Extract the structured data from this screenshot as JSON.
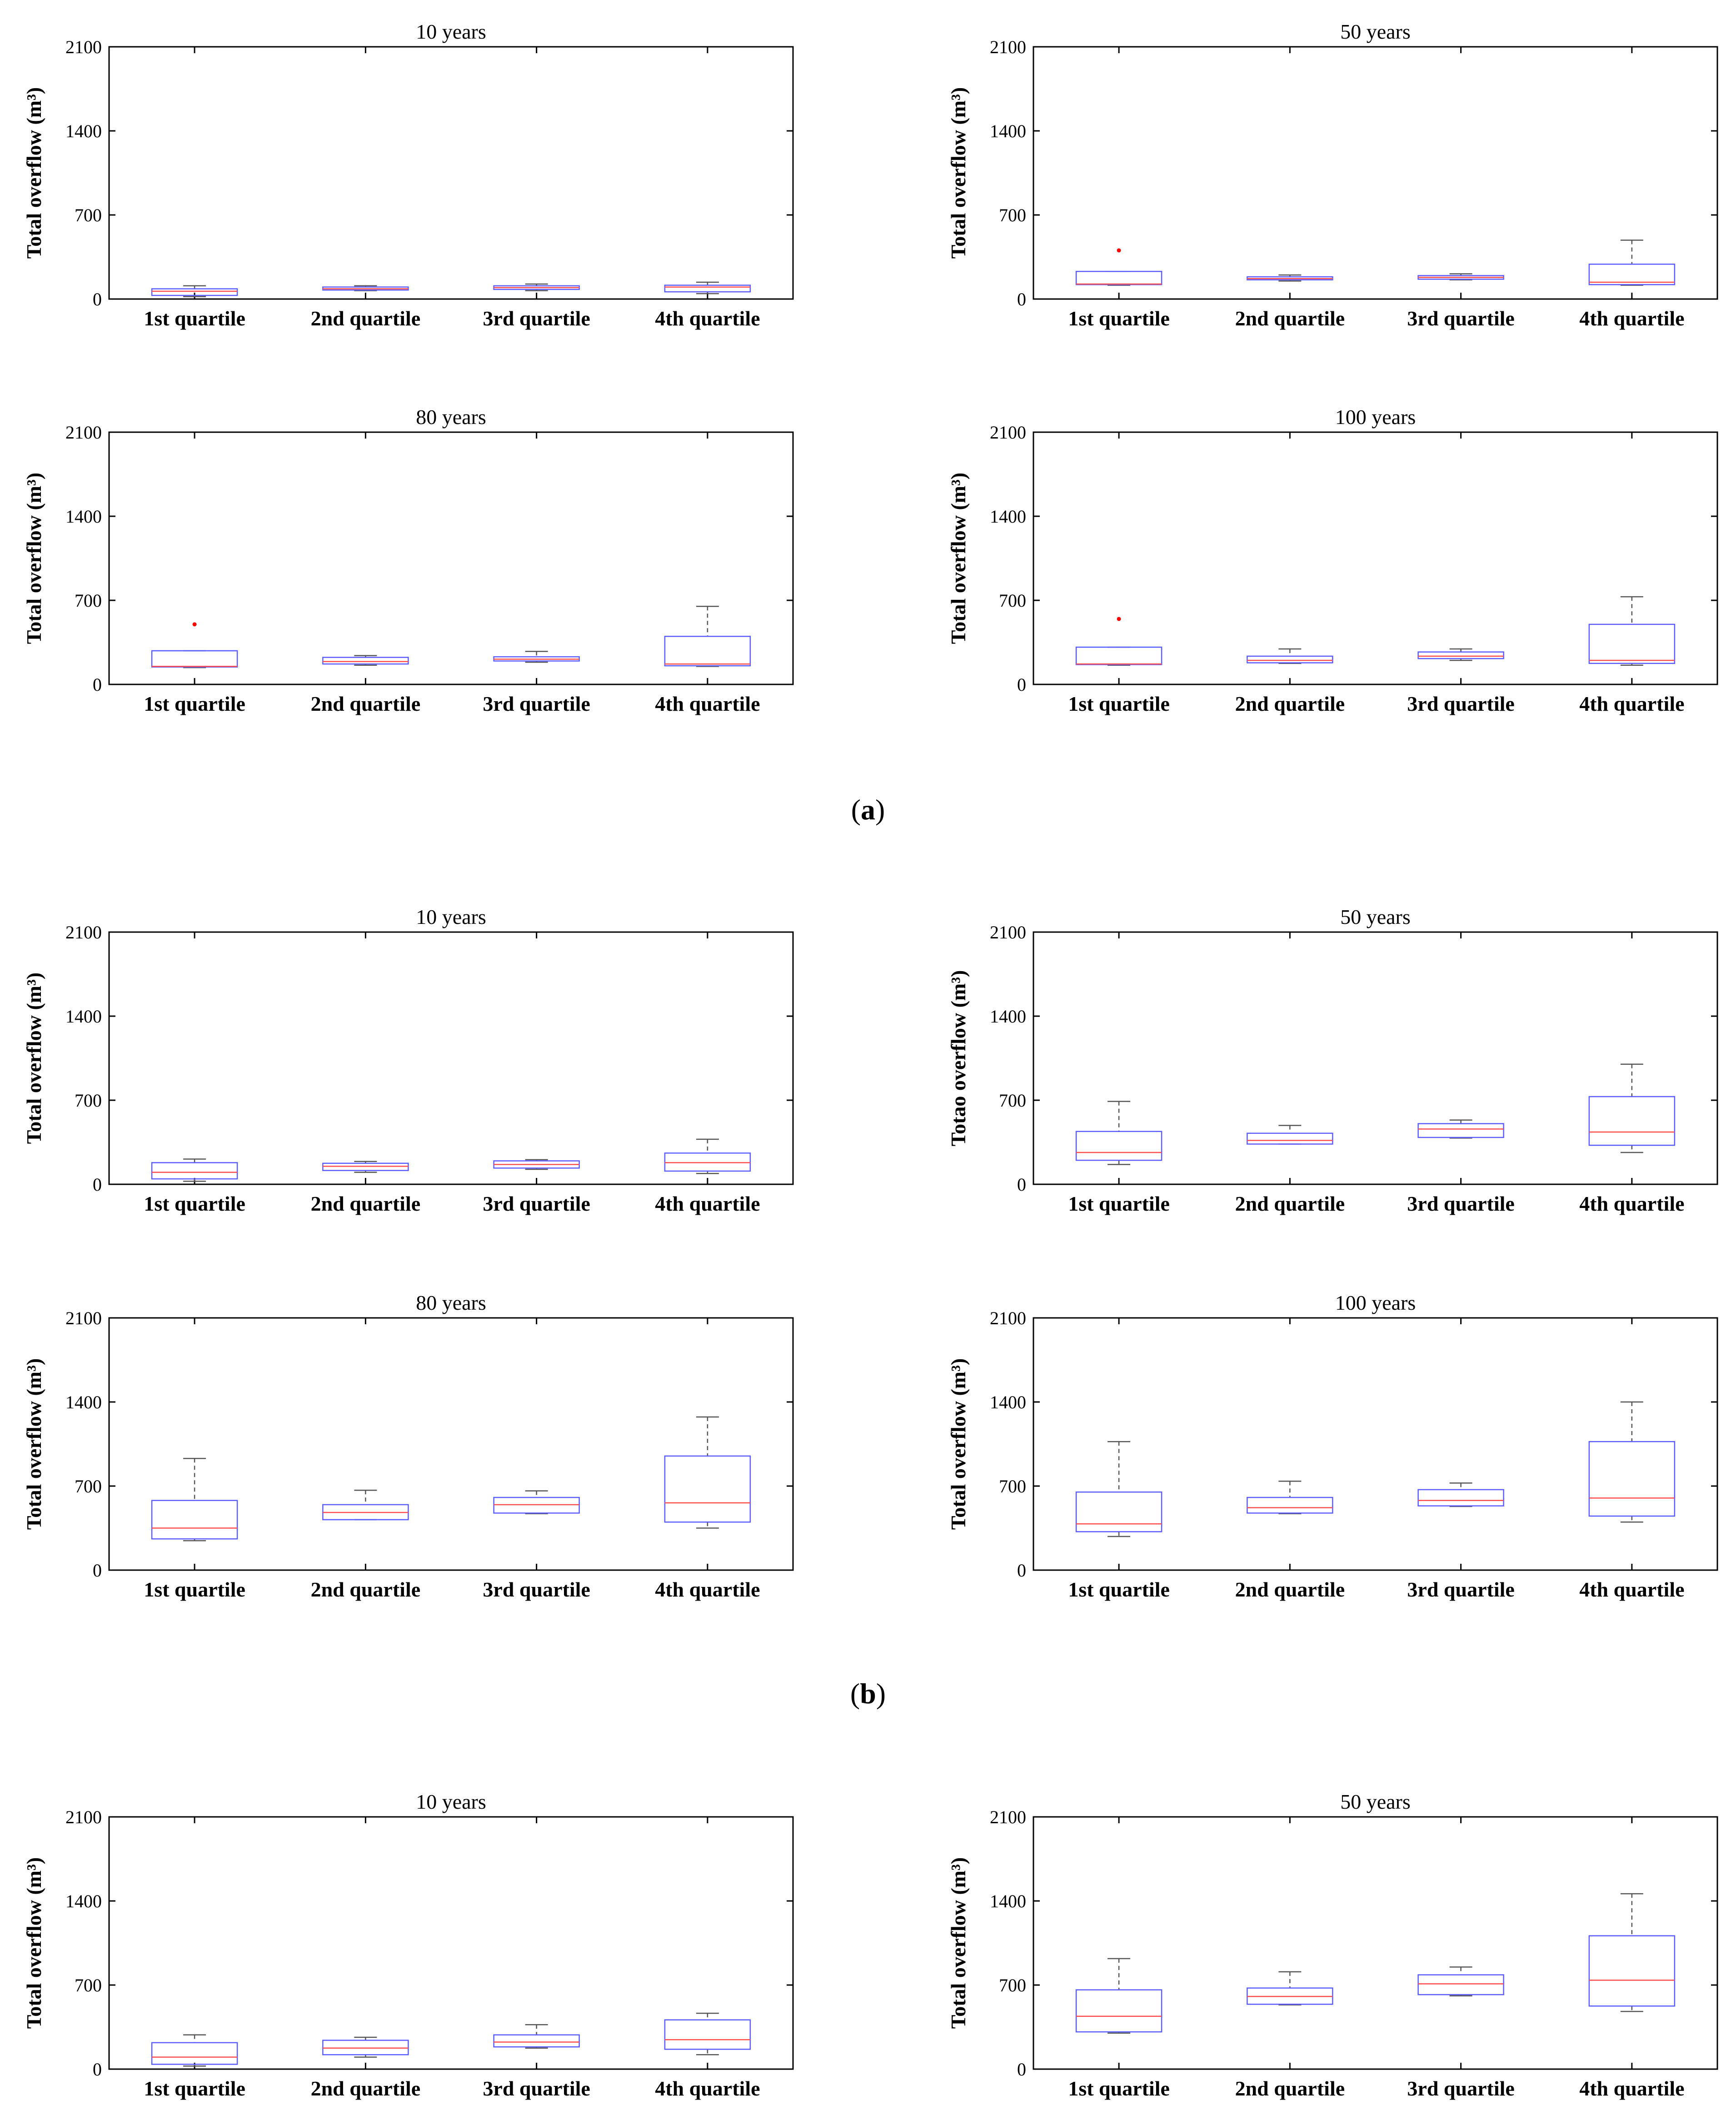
{
  "figure": {
    "panel_labels": [
      "a",
      "b"
    ],
    "colors": {
      "box": "#5a5cff",
      "median": "#ff4b4b",
      "whisker": "#555555",
      "outlier": "#ff0000",
      "axis": "#000000"
    }
  },
  "chart_data": [
    {
      "id": "a-10",
      "type": "boxplot",
      "title": "10 years",
      "ylabel": "Total overflow (m³)",
      "categories": [
        "1st quartile",
        "2nd quartile",
        "3rd quartile",
        "4th quartile"
      ],
      "yticks": [
        0,
        700,
        1400,
        2100
      ],
      "ylim": [
        0,
        2100
      ],
      "boxes": [
        {
          "min": 20,
          "q1": 30,
          "median": 65,
          "q3": 85,
          "max": 110,
          "outliers": []
        },
        {
          "min": 70,
          "q1": 75,
          "median": 85,
          "q3": 100,
          "max": 110,
          "outliers": []
        },
        {
          "min": 70,
          "q1": 80,
          "median": 95,
          "q3": 110,
          "max": 125,
          "outliers": []
        },
        {
          "min": 45,
          "q1": 60,
          "median": 100,
          "q3": 115,
          "max": 140,
          "outliers": []
        }
      ]
    },
    {
      "id": "a-50",
      "type": "boxplot",
      "title": "50 years",
      "ylabel": "Total overflow (m³)",
      "categories": [
        "1st quartile",
        "2nd quartile",
        "3rd quartile",
        "4th quartile"
      ],
      "yticks": [
        0,
        700,
        1400,
        2100
      ],
      "ylim": [
        0,
        2100
      ],
      "boxes": [
        {
          "min": 115,
          "q1": 120,
          "median": 125,
          "q3": 230,
          "max": 230,
          "outliers": [
            405
          ]
        },
        {
          "min": 150,
          "q1": 160,
          "median": 170,
          "q3": 185,
          "max": 200,
          "outliers": []
        },
        {
          "min": 160,
          "q1": 165,
          "median": 180,
          "q3": 195,
          "max": 210,
          "outliers": []
        },
        {
          "min": 115,
          "q1": 120,
          "median": 140,
          "q3": 290,
          "max": 490,
          "outliers": []
        }
      ]
    },
    {
      "id": "a-80",
      "type": "boxplot",
      "title": "80 years",
      "ylabel": "Total overflow (m³)",
      "categories": [
        "1st quartile",
        "2nd quartile",
        "3rd quartile",
        "4th quartile"
      ],
      "yticks": [
        0,
        700,
        1400,
        2100
      ],
      "ylim": [
        0,
        2100
      ],
      "boxes": [
        {
          "min": 140,
          "q1": 145,
          "median": 150,
          "q3": 280,
          "max": 280,
          "outliers": [
            500
          ]
        },
        {
          "min": 160,
          "q1": 170,
          "median": 190,
          "q3": 225,
          "max": 240,
          "outliers": []
        },
        {
          "min": 185,
          "q1": 195,
          "median": 210,
          "q3": 230,
          "max": 275,
          "outliers": []
        },
        {
          "min": 150,
          "q1": 155,
          "median": 170,
          "q3": 400,
          "max": 650,
          "outliers": []
        }
      ]
    },
    {
      "id": "a-100",
      "type": "boxplot",
      "title": "100 years",
      "ylabel": "Total overflow (m³)",
      "categories": [
        "1st quartile",
        "2nd quartile",
        "3rd quartile",
        "4th quartile"
      ],
      "yticks": [
        0,
        700,
        1400,
        2100
      ],
      "ylim": [
        0,
        2100
      ],
      "boxes": [
        {
          "min": 160,
          "q1": 165,
          "median": 170,
          "q3": 310,
          "max": 310,
          "outliers": [
            545
          ]
        },
        {
          "min": 175,
          "q1": 180,
          "median": 200,
          "q3": 235,
          "max": 295,
          "outliers": []
        },
        {
          "min": 200,
          "q1": 215,
          "median": 235,
          "q3": 270,
          "max": 295,
          "outliers": []
        },
        {
          "min": 160,
          "q1": 175,
          "median": 200,
          "q3": 500,
          "max": 730,
          "outliers": []
        }
      ]
    },
    {
      "id": "b-10",
      "type": "boxplot",
      "title": "10 years",
      "ylabel": "Total overflow (m³)",
      "categories": [
        "1st quartile",
        "2nd quartile",
        "3rd quartile",
        "4th quartile"
      ],
      "yticks": [
        0,
        700,
        1400,
        2100
      ],
      "ylim": [
        0,
        2100
      ],
      "boxes": [
        {
          "min": 25,
          "q1": 45,
          "median": 100,
          "q3": 180,
          "max": 210,
          "outliers": []
        },
        {
          "min": 100,
          "q1": 115,
          "median": 150,
          "q3": 175,
          "max": 190,
          "outliers": []
        },
        {
          "min": 125,
          "q1": 135,
          "median": 165,
          "q3": 195,
          "max": 205,
          "outliers": []
        },
        {
          "min": 90,
          "q1": 110,
          "median": 180,
          "q3": 260,
          "max": 375,
          "outliers": []
        }
      ]
    },
    {
      "id": "b-50",
      "type": "boxplot",
      "title": "50 years",
      "ylabel": "Totao overflow (m³)",
      "categories": [
        "1st quartile",
        "2nd quartile",
        "3rd quartile",
        "4th quartile"
      ],
      "yticks": [
        0,
        700,
        1400,
        2100
      ],
      "ylim": [
        0,
        2100
      ],
      "boxes": [
        {
          "min": 165,
          "q1": 200,
          "median": 265,
          "q3": 440,
          "max": 690,
          "outliers": []
        },
        {
          "min": 335,
          "q1": 335,
          "median": 365,
          "q3": 425,
          "max": 490,
          "outliers": []
        },
        {
          "min": 385,
          "q1": 390,
          "median": 460,
          "q3": 505,
          "max": 535,
          "outliers": []
        },
        {
          "min": 265,
          "q1": 325,
          "median": 435,
          "q3": 730,
          "max": 1000,
          "outliers": []
        }
      ]
    },
    {
      "id": "b-80",
      "type": "boxplot",
      "title": "80 years",
      "ylabel": "Total overflow (m³)",
      "categories": [
        "1st quartile",
        "2nd quartile",
        "3rd quartile",
        "4th quartile"
      ],
      "yticks": [
        0,
        700,
        1400,
        2100
      ],
      "ylim": [
        0,
        2100
      ],
      "boxes": [
        {
          "min": 245,
          "q1": 260,
          "median": 350,
          "q3": 580,
          "max": 930,
          "outliers": []
        },
        {
          "min": 420,
          "q1": 420,
          "median": 480,
          "q3": 545,
          "max": 665,
          "outliers": []
        },
        {
          "min": 470,
          "q1": 475,
          "median": 545,
          "q3": 605,
          "max": 660,
          "outliers": []
        },
        {
          "min": 350,
          "q1": 400,
          "median": 560,
          "q3": 950,
          "max": 1275,
          "outliers": []
        }
      ]
    },
    {
      "id": "b-100",
      "type": "boxplot",
      "title": "100 years",
      "ylabel": "Total overflow (m³)",
      "categories": [
        "1st quartile",
        "2nd quartile",
        "3rd quartile",
        "4th quartile"
      ],
      "yticks": [
        0,
        700,
        1400,
        2100
      ],
      "ylim": [
        0,
        2100
      ],
      "boxes": [
        {
          "min": 280,
          "q1": 320,
          "median": 385,
          "q3": 650,
          "max": 1070,
          "outliers": []
        },
        {
          "min": 470,
          "q1": 475,
          "median": 520,
          "q3": 605,
          "max": 740,
          "outliers": []
        },
        {
          "min": 530,
          "q1": 535,
          "median": 580,
          "q3": 670,
          "max": 725,
          "outliers": []
        },
        {
          "min": 400,
          "q1": 450,
          "median": 600,
          "q3": 1070,
          "max": 1400,
          "outliers": []
        }
      ]
    },
    {
      "id": "c-10",
      "type": "boxplot",
      "title": "10 years",
      "ylabel": "Total overflow (m³)",
      "categories": [
        "1st quartile",
        "2nd quartile",
        "3rd quartile",
        "4th quartile"
      ],
      "yticks": [
        0,
        700,
        1400,
        2100
      ],
      "ylim": [
        0,
        2100
      ],
      "boxes": [
        {
          "min": 25,
          "q1": 40,
          "median": 100,
          "q3": 220,
          "max": 285,
          "outliers": []
        },
        {
          "min": 100,
          "q1": 120,
          "median": 175,
          "q3": 240,
          "max": 265,
          "outliers": []
        },
        {
          "min": 175,
          "q1": 185,
          "median": 225,
          "q3": 285,
          "max": 370,
          "outliers": []
        },
        {
          "min": 120,
          "q1": 165,
          "median": 245,
          "q3": 410,
          "max": 465,
          "outliers": []
        }
      ]
    },
    {
      "id": "c-50",
      "type": "boxplot",
      "title": "50 years",
      "ylabel": "Total overflow (m³)",
      "categories": [
        "1st quartile",
        "2nd quartile",
        "3rd quartile",
        "4th quartile"
      ],
      "yticks": [
        0,
        700,
        1400,
        2100
      ],
      "ylim": [
        0,
        2100
      ],
      "boxes": [
        {
          "min": 300,
          "q1": 310,
          "median": 440,
          "q3": 660,
          "max": 920,
          "outliers": []
        },
        {
          "min": 535,
          "q1": 540,
          "median": 605,
          "q3": 675,
          "max": 810,
          "outliers": []
        },
        {
          "min": 610,
          "q1": 620,
          "median": 710,
          "q3": 785,
          "max": 850,
          "outliers": []
        },
        {
          "min": 480,
          "q1": 525,
          "median": 740,
          "q3": 1110,
          "max": 1460,
          "outliers": []
        }
      ]
    }
  ]
}
